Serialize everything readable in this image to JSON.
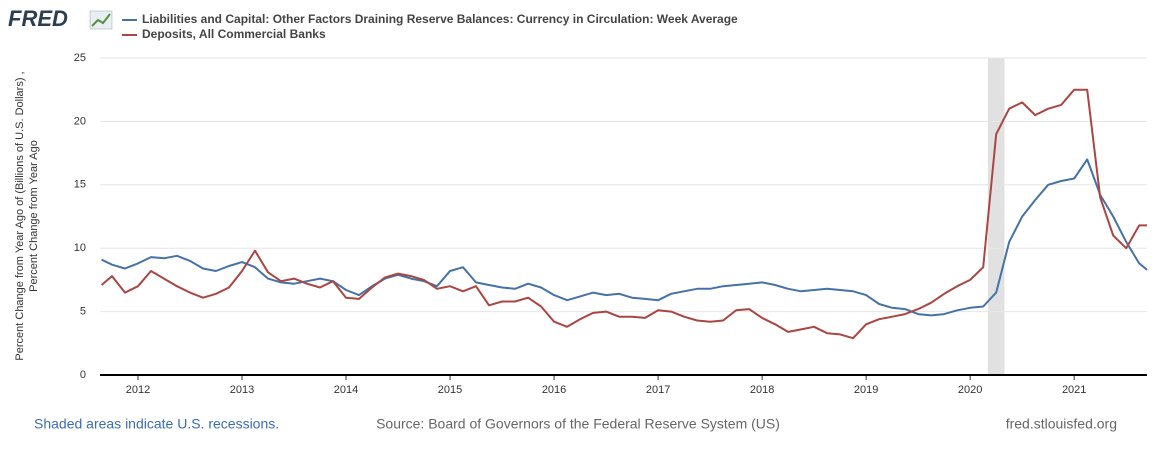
{
  "logo": "FRED",
  "chart_data": {
    "type": "line",
    "ylabel": [
      "Percent Change from Year Ago of (Billions of U.S. Dollars) ,",
      "Percent Change from Year Ago"
    ],
    "x": [
      2011.65,
      2011.75,
      2011.875,
      2012,
      2012.125,
      2012.25,
      2012.375,
      2012.5,
      2012.625,
      2012.75,
      2012.875,
      2013,
      2013.125,
      2013.25,
      2013.375,
      2013.5,
      2013.625,
      2013.75,
      2013.875,
      2014,
      2014.125,
      2014.25,
      2014.375,
      2014.5,
      2014.625,
      2014.75,
      2014.875,
      2015,
      2015.125,
      2015.25,
      2015.375,
      2015.5,
      2015.625,
      2015.75,
      2015.875,
      2016,
      2016.125,
      2016.25,
      2016.375,
      2016.5,
      2016.625,
      2016.75,
      2016.875,
      2017,
      2017.125,
      2017.25,
      2017.375,
      2017.5,
      2017.625,
      2017.75,
      2017.875,
      2018,
      2018.125,
      2018.25,
      2018.375,
      2018.5,
      2018.625,
      2018.75,
      2018.875,
      2019,
      2019.125,
      2019.25,
      2019.375,
      2019.5,
      2019.625,
      2019.75,
      2019.875,
      2020,
      2020.125,
      2020.25,
      2020.375,
      2020.5,
      2020.625,
      2020.75,
      2020.875,
      2021,
      2021.125,
      2021.25,
      2021.375,
      2021.5,
      2021.625,
      2021.7
    ],
    "series": [
      {
        "name": "Liabilities and Capital: Other Factors Draining Reserve Balances: Currency in Circulation: Week Average",
        "color": "#4572a7",
        "values": [
          9.1,
          8.7,
          8.4,
          8.8,
          9.3,
          9.2,
          9.4,
          9.0,
          8.4,
          8.2,
          8.6,
          8.9,
          8.5,
          7.6,
          7.3,
          7.2,
          7.4,
          7.6,
          7.4,
          6.7,
          6.3,
          7.0,
          7.6,
          7.9,
          7.6,
          7.4,
          7.0,
          8.2,
          8.5,
          7.3,
          7.1,
          6.9,
          6.8,
          7.2,
          6.9,
          6.3,
          5.9,
          6.2,
          6.5,
          6.3,
          6.4,
          6.1,
          6.0,
          5.9,
          6.4,
          6.6,
          6.8,
          6.8,
          7.0,
          7.1,
          7.2,
          7.3,
          7.1,
          6.8,
          6.6,
          6.7,
          6.8,
          6.7,
          6.6,
          6.3,
          5.6,
          5.3,
          5.2,
          4.8,
          4.7,
          4.8,
          5.1,
          5.3,
          5.4,
          6.5,
          10.5,
          12.5,
          13.8,
          15.0,
          15.3,
          15.5,
          17.0,
          14.2,
          12.5,
          10.5,
          8.8,
          8.3
        ]
      },
      {
        "name": "Deposits, All Commercial Banks",
        "color": "#aa4643",
        "values": [
          7.1,
          7.8,
          6.5,
          7.0,
          8.2,
          7.6,
          7.0,
          6.5,
          6.1,
          6.4,
          6.9,
          8.2,
          9.8,
          8.1,
          7.4,
          7.6,
          7.2,
          6.9,
          7.4,
          6.1,
          6.0,
          6.9,
          7.7,
          8.0,
          7.8,
          7.5,
          6.8,
          7.0,
          6.6,
          7.0,
          5.5,
          5.8,
          5.8,
          6.1,
          5.4,
          4.2,
          3.8,
          4.4,
          4.9,
          5.0,
          4.6,
          4.6,
          4.5,
          5.1,
          5.0,
          4.6,
          4.3,
          4.2,
          4.3,
          5.1,
          5.2,
          4.5,
          4.0,
          3.4,
          3.6,
          3.8,
          3.3,
          3.2,
          2.9,
          4.0,
          4.4,
          4.6,
          4.8,
          5.2,
          5.7,
          6.4,
          7.0,
          7.5,
          8.5,
          19.0,
          21.0,
          21.5,
          20.5,
          21.0,
          21.3,
          22.5,
          22.5,
          14.0,
          11.0,
          10.0,
          11.8,
          11.8
        ]
      }
    ],
    "recession": [
      2020.17,
      2020.33
    ],
    "xlim": [
      2011.635,
      2021.7
    ],
    "xticks": [
      2012,
      2013,
      2014,
      2015,
      2016,
      2017,
      2018,
      2019,
      2020,
      2021
    ],
    "ylim": [
      0,
      25
    ],
    "yticks": [
      0,
      5,
      10,
      15,
      20,
      25
    ],
    "grid": true
  },
  "footer": {
    "recession_note": "Shaded areas indicate U.S. recessions.",
    "source": "Source: Board of Governors of the Federal Reserve System (US)",
    "site": "fred.stlouisfed.org"
  }
}
